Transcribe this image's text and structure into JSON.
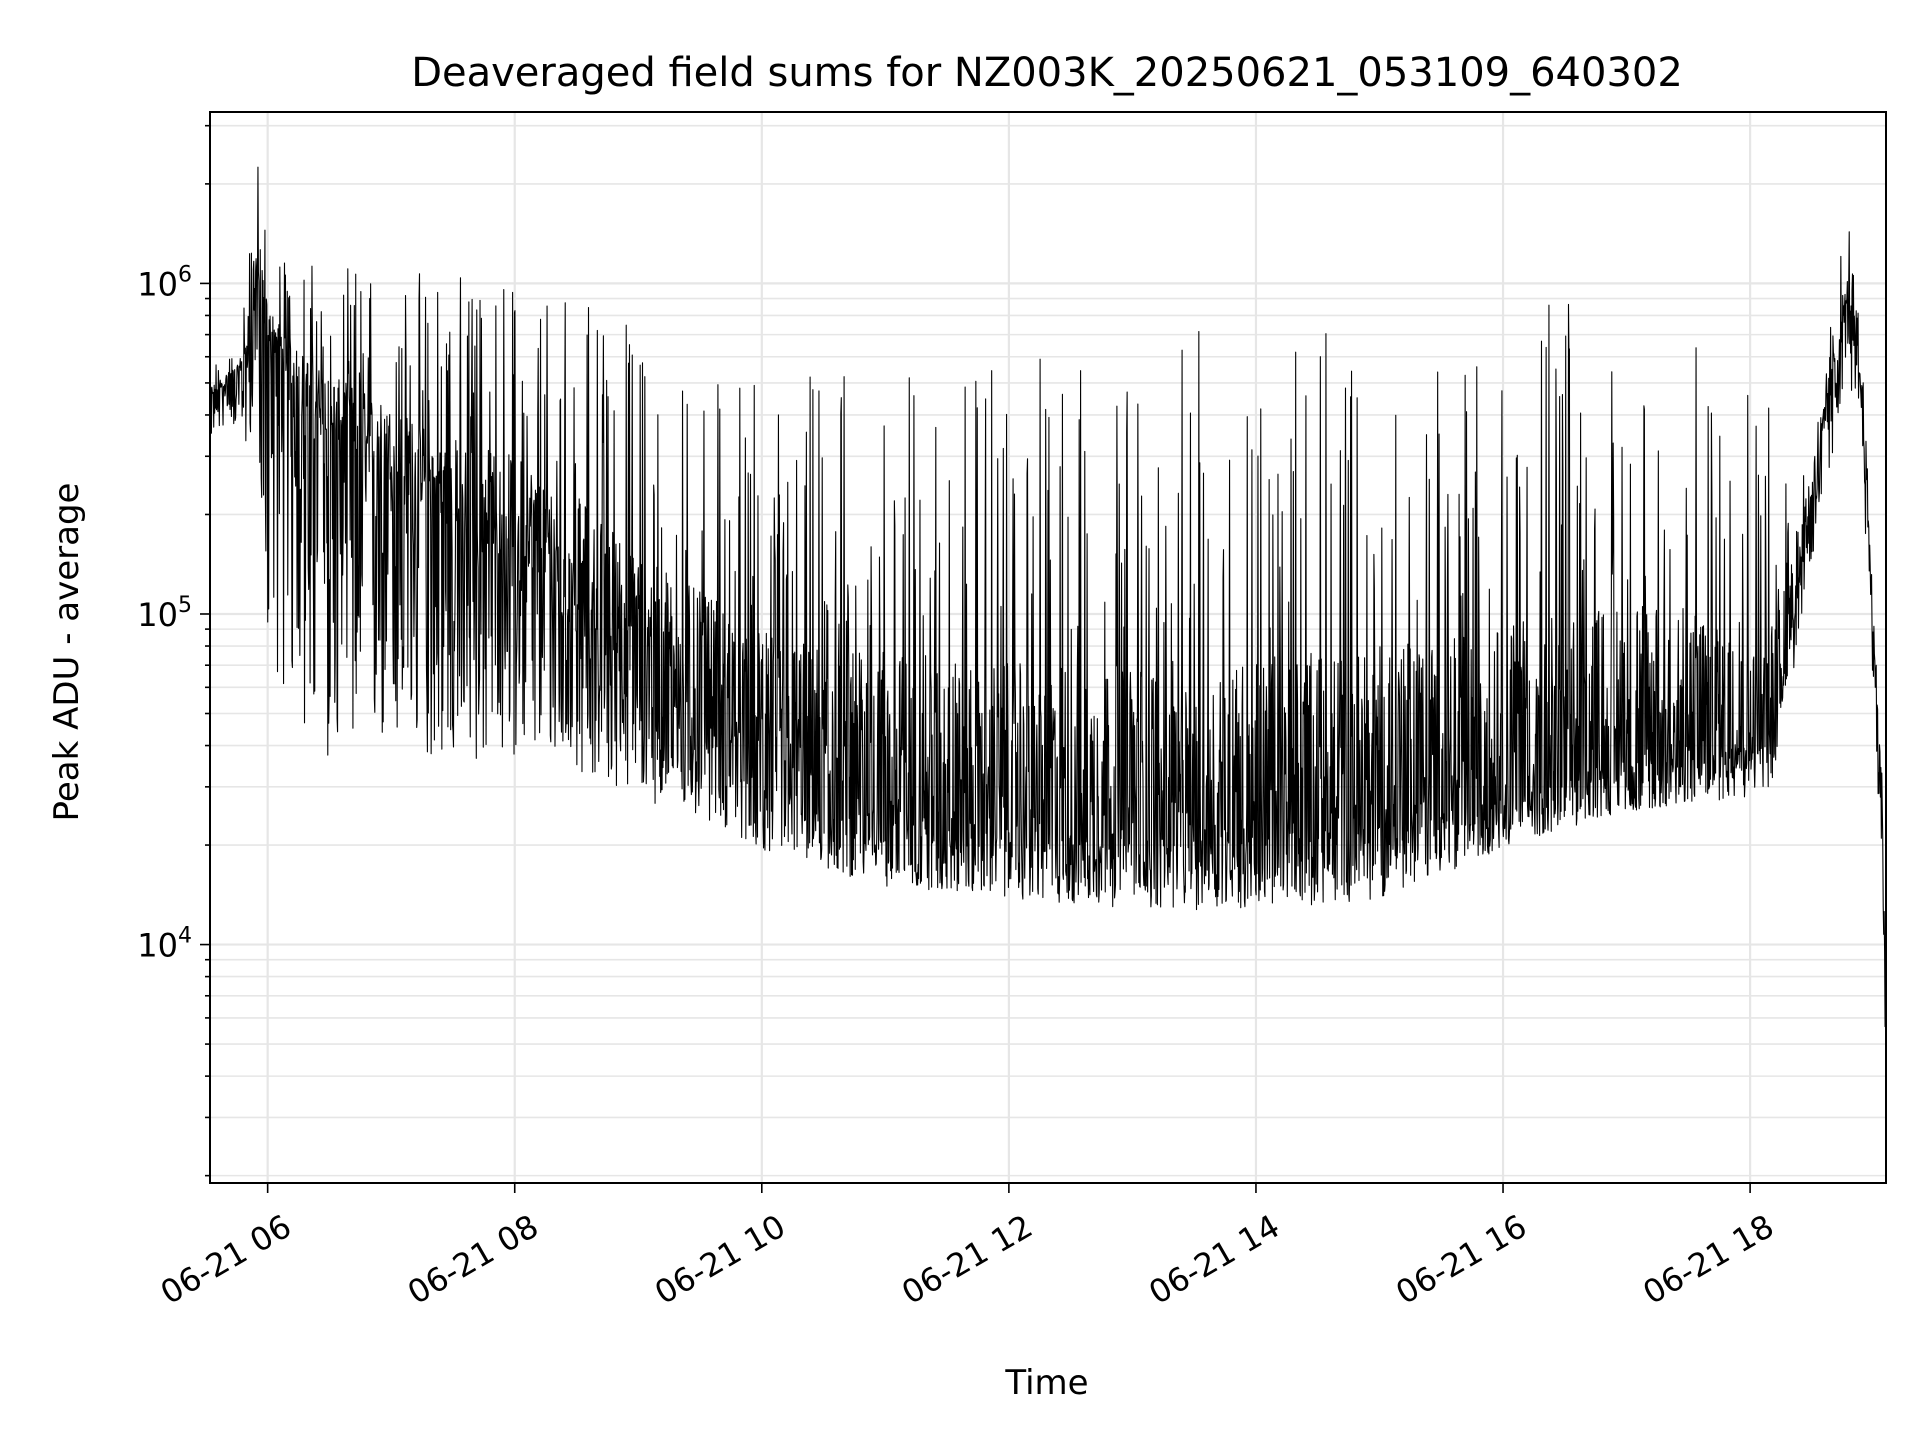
{
  "chart_data": {
    "type": "line",
    "title": "Deaveraged field sums for NZ003K_20250621_053109_640302",
    "xlabel": "Time",
    "ylabel": "Peak ADU - average",
    "yscale": "log",
    "ylim": [
      1900,
      3300000
    ],
    "ytick_values": [
      10000,
      100000,
      1000000
    ],
    "ytick_labels": [
      {
        "base": "10",
        "exp": "4"
      },
      {
        "base": "10",
        "exp": "5"
      },
      {
        "base": "10",
        "exp": "6"
      }
    ],
    "xlim": [
      "2025-06-21T05:32",
      "2025-06-21T19:06"
    ],
    "xtick_values": [
      "2025-06-21T06:00",
      "2025-06-21T08:00",
      "2025-06-21T10:00",
      "2025-06-21T12:00",
      "2025-06-21T14:00",
      "2025-06-21T16:00",
      "2025-06-21T18:00"
    ],
    "xtick_labels": [
      "06-21 06",
      "06-21 08",
      "06-21 10",
      "06-21 12",
      "06-21 14",
      "06-21 16",
      "06-21 18"
    ],
    "grid": true,
    "line_color": "#000000",
    "series": [
      {
        "x": [
          "2025-06-21T05:32",
          "2025-06-21T05:40",
          "2025-06-21T05:46",
          "2025-06-21T05:50",
          "2025-06-21T05:52",
          "2025-06-21T05:55",
          "2025-06-21T06:00",
          "2025-06-21T06:15",
          "2025-06-21T06:30",
          "2025-06-21T06:45",
          "2025-06-21T07:00",
          "2025-06-21T07:20",
          "2025-06-21T07:40",
          "2025-06-21T08:00",
          "2025-06-21T08:20",
          "2025-06-21T08:40",
          "2025-06-21T09:00",
          "2025-06-21T09:20",
          "2025-06-21T09:40",
          "2025-06-21T10:00",
          "2025-06-21T10:30",
          "2025-06-21T11:00",
          "2025-06-21T11:30",
          "2025-06-21T12:00",
          "2025-06-21T12:30",
          "2025-06-21T13:00",
          "2025-06-21T13:30",
          "2025-06-21T14:00",
          "2025-06-21T14:30",
          "2025-06-21T15:00",
          "2025-06-21T15:30",
          "2025-06-21T16:00",
          "2025-06-21T16:30",
          "2025-06-21T17:00",
          "2025-06-21T17:30",
          "2025-06-21T18:00",
          "2025-06-21T18:10",
          "2025-06-21T18:25",
          "2025-06-21T18:40",
          "2025-06-21T18:48",
          "2025-06-21T18:55",
          "2025-06-21T19:00",
          "2025-06-21T19:04",
          "2025-06-21T19:06"
        ],
        "baseline": [
          450000,
          500000,
          520000,
          600000,
          900000,
          1000000,
          650000,
          450000,
          350000,
          300000,
          250000,
          200000,
          170000,
          150000,
          120000,
          90000,
          70000,
          55000,
          45000,
          35000,
          28000,
          25000,
          24000,
          23000,
          22000,
          21500,
          21000,
          21500,
          22000,
          23000,
          25000,
          28000,
          32000,
          36000,
          38000,
          40000,
          42000,
          150000,
          500000,
          900000,
          400000,
          80000,
          30000,
          5000
        ],
        "spread_low": [
          0.75,
          0.75,
          0.7,
          0.5,
          0.4,
          0.35,
          0.12,
          0.1,
          0.1,
          0.12,
          0.15,
          0.18,
          0.2,
          0.25,
          0.3,
          0.35,
          0.4,
          0.45,
          0.5,
          0.55,
          0.6,
          0.6,
          0.6,
          0.6,
          0.6,
          0.6,
          0.6,
          0.6,
          0.6,
          0.6,
          0.65,
          0.7,
          0.7,
          0.7,
          0.7,
          0.7,
          0.7,
          0.6,
          0.6,
          0.6,
          0.6,
          0.6,
          0.6,
          0.5
        ],
        "spread_high": [
          1.25,
          1.2,
          1.3,
          1.8,
          2.5,
          2.4,
          2.2,
          2.6,
          3.2,
          3.8,
          4.5,
          5.5,
          6.5,
          7.5,
          9,
          10,
          11,
          11,
          12,
          14,
          20,
          25,
          25,
          25,
          28,
          30,
          35,
          35,
          35,
          35,
          32,
          30,
          28,
          22,
          18,
          15,
          10,
          2,
          1.8,
          1.8,
          1.5,
          1.3,
          1.3,
          1.2
        ]
      }
    ]
  }
}
